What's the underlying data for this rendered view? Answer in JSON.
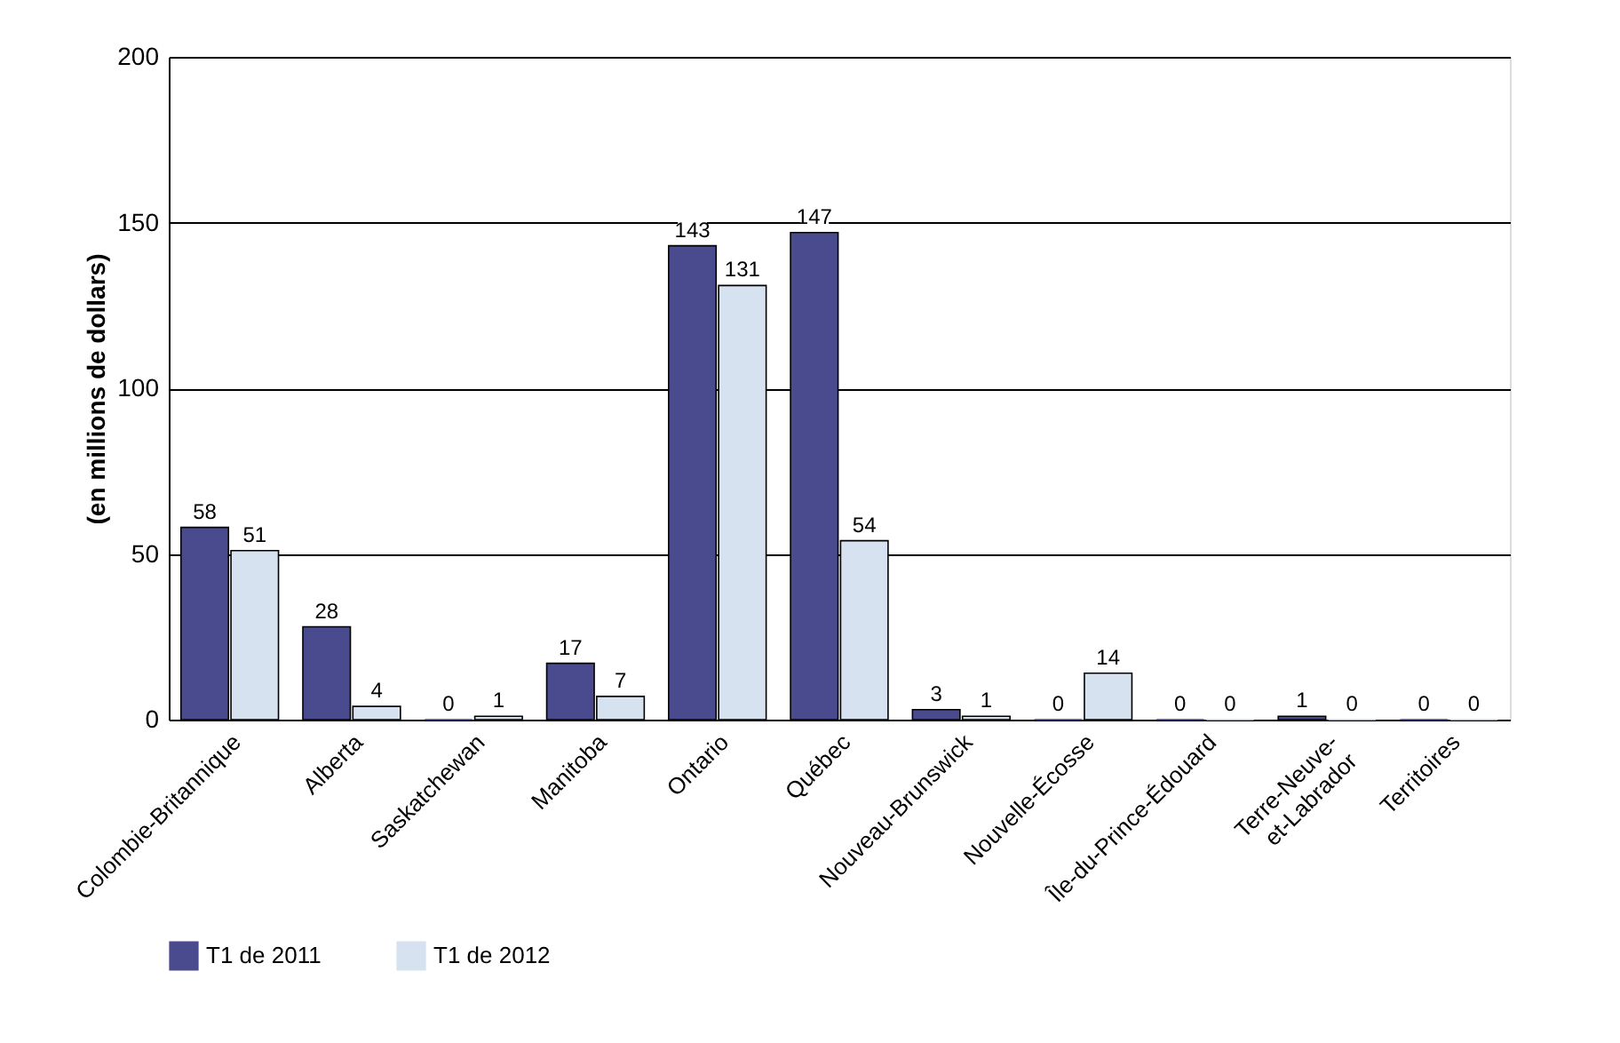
{
  "chart_data": {
    "type": "bar",
    "ylabel": "(en millions de dollars)",
    "categories": [
      "Colombie-Britannique",
      "Alberta",
      "Saskatchewan",
      "Manitoba",
      "Ontario",
      "Québec",
      "Nouveau-Brunswick",
      "Nouvelle-Écosse",
      "Île-du-Prince-Édouard",
      "Terre-Neuve-\net-Labrador",
      "Territoires"
    ],
    "series": [
      {
        "name": "T1 de 2011",
        "color": "#4a4a8e",
        "values": [
          58,
          28,
          0,
          17,
          143,
          147,
          3,
          0,
          0,
          1,
          0
        ]
      },
      {
        "name": "T1 de 2012",
        "color": "#d6e2ef",
        "values": [
          51,
          4,
          1,
          7,
          131,
          54,
          1,
          14,
          0,
          0,
          0
        ]
      }
    ],
    "ylim": [
      0,
      200
    ],
    "yticks": [
      0,
      50,
      100,
      150,
      200
    ],
    "grid": "y",
    "legend": "bottom left",
    "data_labels": true
  }
}
